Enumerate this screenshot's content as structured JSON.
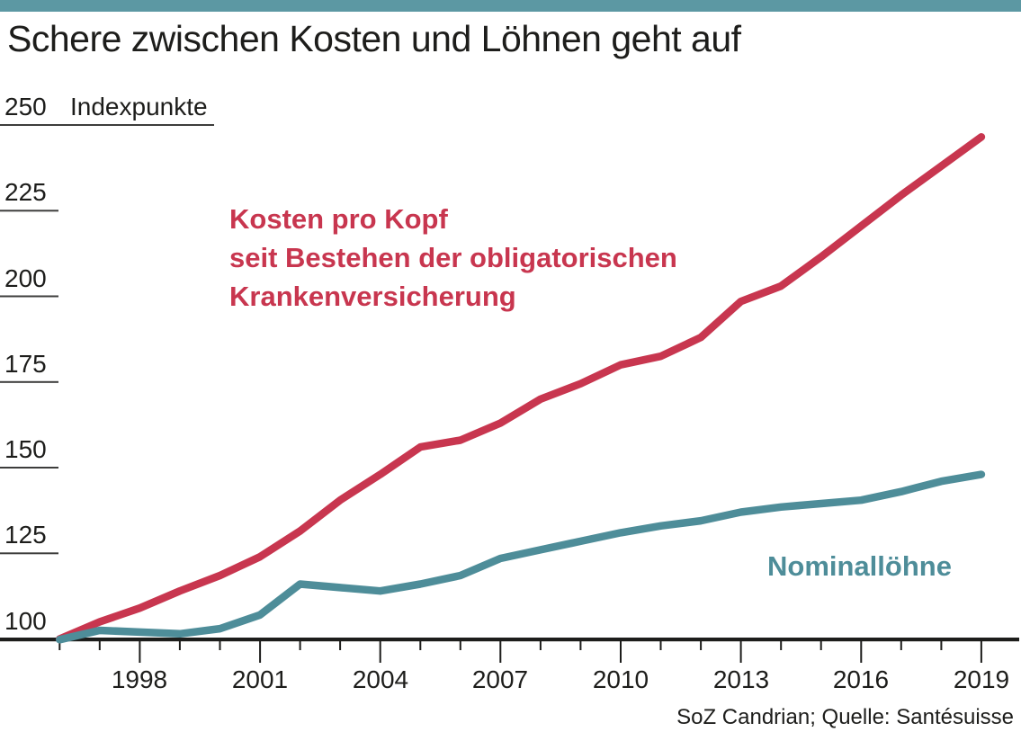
{
  "header": {
    "title": "Schere zwischen Kosten und Löhnen geht auf"
  },
  "colors": {
    "accent_bar": "#5c98a3",
    "cost_line": "#c8364f",
    "wage_line": "#4e8d99",
    "axis": "#1d1d1b",
    "gridline": "#3d3d3c"
  },
  "chart_data": {
    "type": "line",
    "title": "Schere zwischen Kosten und Löhnen geht auf",
    "ylabel": "Indexpunkte",
    "xlabel": "",
    "grid": "horizontal-ticks-left",
    "legend_position": "inline-annotations",
    "xlim": [
      1996,
      2019
    ],
    "ylim": [
      100,
      250
    ],
    "y_ticks": [
      100,
      125,
      150,
      175,
      200,
      225,
      250
    ],
    "x_tick_labels": [
      1998,
      2001,
      2004,
      2007,
      2010,
      2013,
      2016,
      2019
    ],
    "x": [
      1996,
      1997,
      1998,
      1999,
      2000,
      2001,
      2002,
      2003,
      2004,
      2005,
      2006,
      2007,
      2008,
      2009,
      2010,
      2011,
      2012,
      2013,
      2014,
      2015,
      2016,
      2017,
      2018,
      2019
    ],
    "series": [
      {
        "name": "Kosten pro Kopf seit Bestehen der obligatorischen Krankenversicherung",
        "color": "#c8364f",
        "values": [
          100,
          105,
          109,
          114,
          118.5,
          124,
          131.5,
          140.5,
          148,
          156,
          158,
          163,
          170,
          174.5,
          180,
          182.5,
          188,
          198.5,
          203,
          211.5,
          220.5,
          229.5,
          238,
          246.5
        ]
      },
      {
        "name": "Nominallöhne",
        "color": "#4e8d99",
        "values": [
          99.8,
          102.5,
          102,
          101.5,
          103,
          107,
          116,
          115,
          114,
          116,
          118.5,
          123.5,
          126,
          128.5,
          131,
          133,
          134.5,
          137,
          138.5,
          139.5,
          140.5,
          143,
          146,
          148
        ]
      }
    ]
  },
  "annotations": {
    "cost_label_lines": [
      "Kosten pro Kopf",
      "seit Bestehen der obligatorischen",
      "Krankenversicherung"
    ],
    "wage_label": "Nominallöhne"
  },
  "source": "SoZ Candrian; Quelle: Santésuisse"
}
